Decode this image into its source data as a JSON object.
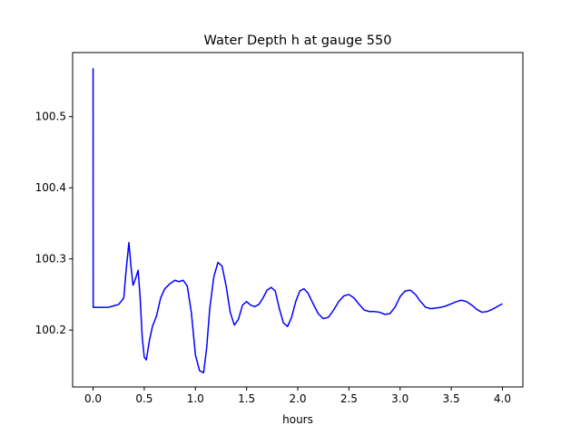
{
  "chart_data": {
    "type": "line",
    "title": "Water Depth h at gauge 550",
    "xlabel": "hours",
    "ylabel": "",
    "xlim": [
      -0.2,
      4.2
    ],
    "ylim": [
      100.12,
      100.59
    ],
    "xticks": [
      0.0,
      0.5,
      1.0,
      1.5,
      2.0,
      2.5,
      3.0,
      3.5,
      4.0
    ],
    "xtick_labels": [
      "0.0",
      "0.5",
      "1.0",
      "1.5",
      "2.0",
      "2.5",
      "3.0",
      "3.5",
      "4.0"
    ],
    "yticks": [
      100.2,
      100.3,
      100.4,
      100.5
    ],
    "ytick_labels": [
      "100.2",
      "100.3",
      "100.4",
      "100.5"
    ],
    "grid": false,
    "series": [
      {
        "color": "#0000ff",
        "x": [
          0.0,
          0.0,
          0.001,
          0.05,
          0.1,
          0.15,
          0.2,
          0.25,
          0.3,
          0.32,
          0.35,
          0.37,
          0.39,
          0.41,
          0.44,
          0.46,
          0.48,
          0.5,
          0.52,
          0.55,
          0.58,
          0.62,
          0.66,
          0.7,
          0.75,
          0.8,
          0.84,
          0.88,
          0.92,
          0.96,
          1.0,
          1.04,
          1.08,
          1.11,
          1.14,
          1.18,
          1.22,
          1.26,
          1.3,
          1.34,
          1.38,
          1.42,
          1.46,
          1.5,
          1.54,
          1.58,
          1.62,
          1.66,
          1.7,
          1.74,
          1.78,
          1.82,
          1.86,
          1.9,
          1.94,
          1.98,
          2.02,
          2.06,
          2.1,
          2.15,
          2.2,
          2.25,
          2.3,
          2.35,
          2.4,
          2.45,
          2.5,
          2.55,
          2.6,
          2.65,
          2.7,
          2.75,
          2.8,
          2.85,
          2.9,
          2.95,
          3.0,
          3.05,
          3.1,
          3.15,
          3.2,
          3.25,
          3.3,
          3.35,
          3.4,
          3.45,
          3.5,
          3.55,
          3.6,
          3.65,
          3.7,
          3.75,
          3.8,
          3.85,
          3.9,
          3.95,
          4.0
        ],
        "y": [
          100.568,
          100.568,
          100.232,
          100.232,
          100.232,
          100.232,
          100.234,
          100.236,
          100.245,
          100.28,
          100.323,
          100.29,
          100.263,
          100.27,
          100.284,
          100.245,
          100.19,
          100.162,
          100.158,
          100.185,
          100.205,
          100.22,
          100.245,
          100.258,
          100.265,
          100.27,
          100.268,
          100.27,
          100.262,
          100.225,
          100.165,
          100.143,
          100.14,
          100.175,
          100.23,
          100.275,
          100.295,
          100.29,
          100.262,
          100.225,
          100.207,
          100.215,
          100.235,
          100.24,
          100.235,
          100.233,
          100.236,
          100.245,
          100.256,
          100.26,
          100.255,
          100.23,
          100.21,
          100.205,
          100.218,
          100.24,
          100.255,
          100.258,
          100.252,
          100.237,
          100.223,
          100.216,
          100.218,
          100.228,
          100.24,
          100.248,
          100.25,
          100.245,
          100.236,
          100.228,
          100.226,
          100.226,
          100.225,
          100.222,
          100.223,
          100.232,
          100.247,
          100.255,
          100.256,
          100.25,
          100.24,
          100.232,
          100.23,
          100.231,
          100.232,
          100.234,
          100.237,
          100.24,
          100.242,
          100.24,
          100.235,
          100.229,
          100.225,
          100.226,
          100.229,
          100.233,
          100.237
        ]
      }
    ]
  }
}
